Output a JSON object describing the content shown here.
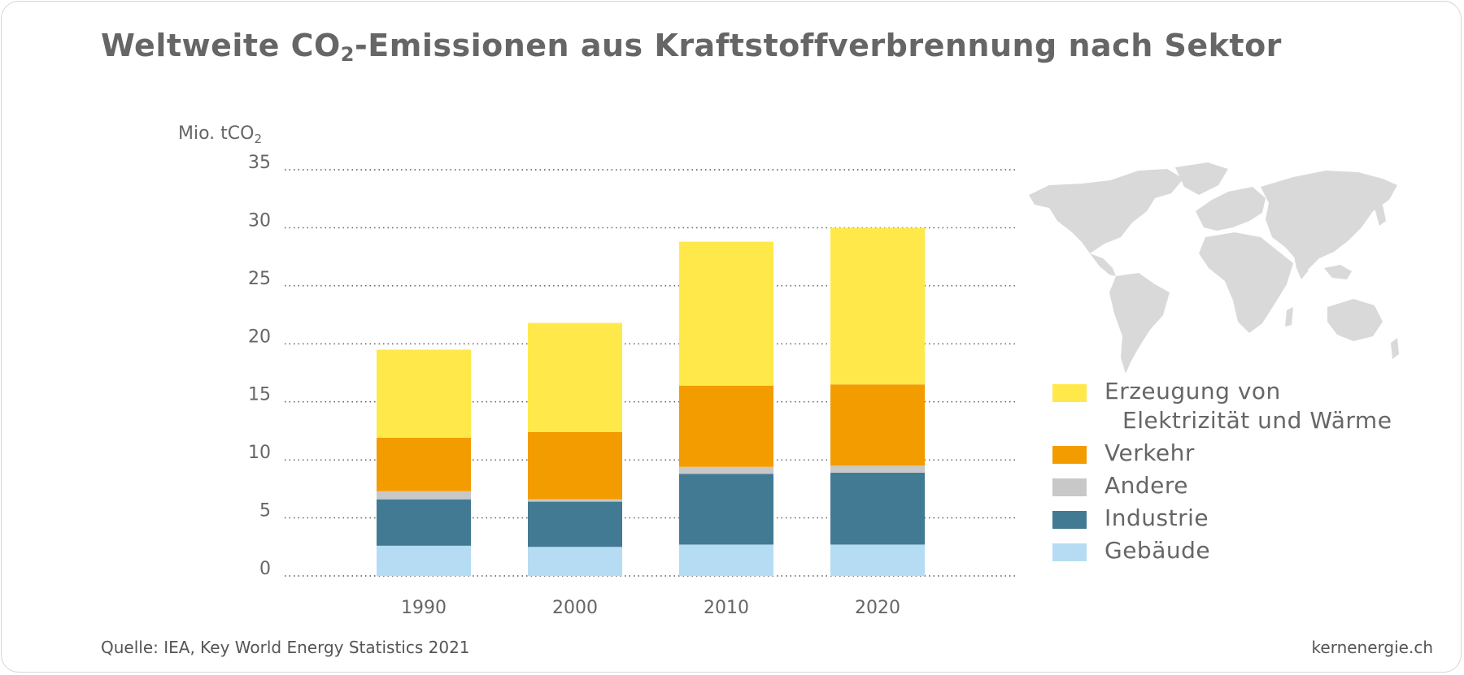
{
  "title": {
    "pre": "Weltweite CO",
    "sub": "2",
    "post": "-Emissionen aus Kraftstoffverbrennung nach Sektor"
  },
  "unit": {
    "pre": "Mio. tCO",
    "sub": "2"
  },
  "source": "Quelle: IEA, Key World Energy Statistics 2021",
  "site": "kernenergie.ch",
  "colors": {
    "erzeugung": "#ffe94a",
    "verkehr": "#f39c00",
    "andere": "#c8c8c8",
    "industrie": "#427a94",
    "gebaeude": "#b5dcf3",
    "text": "#666666",
    "map": "#d9d9d9"
  },
  "legend": {
    "erzeugung_line1": "Erzeugung von",
    "erzeugung_line2": "Elektrizität und Wärme",
    "verkehr": "Verkehr",
    "andere": "Andere",
    "industrie": "Industrie",
    "gebaeude": "Gebäude"
  },
  "map_icon": "world-map-icon",
  "chart_data": {
    "type": "bar",
    "stacked": true,
    "categories": [
      "1990",
      "2000",
      "2010",
      "2020"
    ],
    "ylim": [
      0,
      35
    ],
    "yticks": [
      "0",
      "5",
      "10",
      "15",
      "20",
      "25",
      "30",
      "35"
    ],
    "ylabel": "Mio. tCO2",
    "grid": "dotted horizontal",
    "legend_position": "right",
    "series": [
      {
        "name": "Gebäude",
        "key": "gebaeude",
        "values": [
          2.6,
          2.5,
          2.7,
          2.7
        ]
      },
      {
        "name": "Industrie",
        "key": "industrie",
        "values": [
          4.0,
          3.9,
          6.1,
          6.2
        ]
      },
      {
        "name": "Andere",
        "key": "andere",
        "values": [
          0.7,
          0.2,
          0.6,
          0.6
        ]
      },
      {
        "name": "Verkehr",
        "key": "verkehr",
        "values": [
          4.6,
          5.8,
          7.0,
          7.0
        ]
      },
      {
        "name": "Erzeugung von Elektrizität und Wärme",
        "key": "erzeugung",
        "values": [
          7.6,
          9.4,
          12.4,
          13.5
        ]
      }
    ]
  }
}
